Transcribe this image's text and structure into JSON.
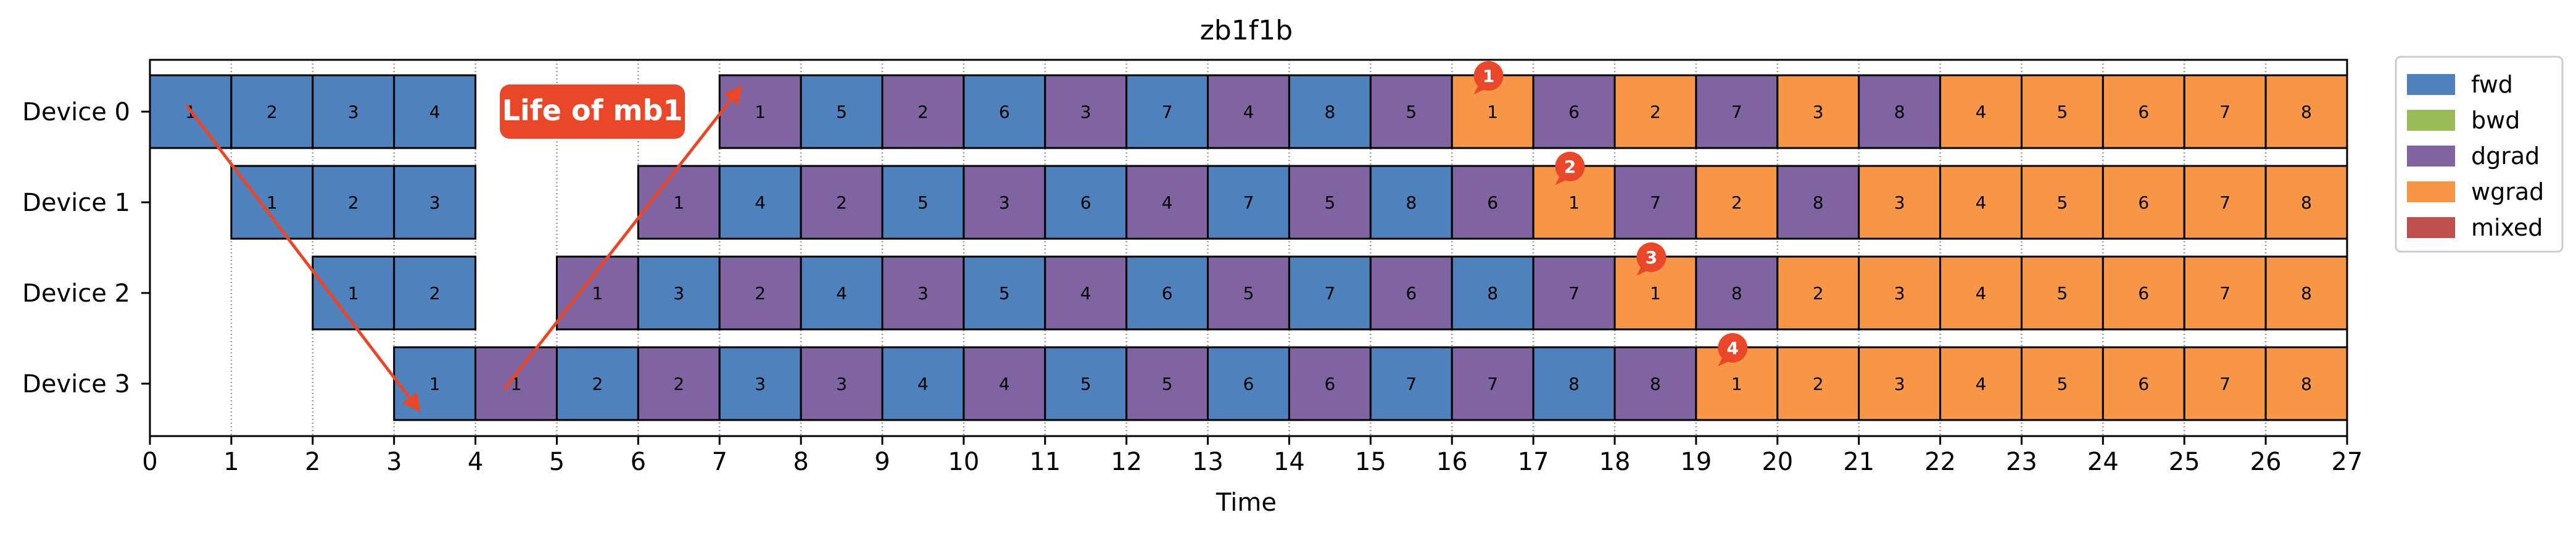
{
  "chart_data": {
    "type": "gantt",
    "title": "zb1f1b",
    "xlabel": "Time",
    "xlim": [
      0,
      27
    ],
    "xticks": [
      0,
      1,
      2,
      3,
      4,
      5,
      6,
      7,
      8,
      9,
      10,
      11,
      12,
      13,
      14,
      15,
      16,
      17,
      18,
      19,
      20,
      21,
      22,
      23,
      24,
      25,
      26,
      27
    ],
    "grid": "vertical-dotted",
    "legend_position": "right",
    "legend": [
      {
        "key": "fwd",
        "label": "fwd",
        "color": "#4f81bd"
      },
      {
        "key": "bwd",
        "label": "bwd",
        "color": "#9bbb59"
      },
      {
        "key": "dgrad",
        "label": "dgrad",
        "color": "#8064a2"
      },
      {
        "key": "wgrad",
        "label": "wgrad",
        "color": "#f79646"
      },
      {
        "key": "mixed",
        "label": "mixed",
        "color": "#c0504d"
      }
    ],
    "devices": [
      {
        "label": "Device 0",
        "blocks": [
          {
            "t": 0,
            "type": "fwd",
            "mb": "1"
          },
          {
            "t": 1,
            "type": "fwd",
            "mb": "2"
          },
          {
            "t": 2,
            "type": "fwd",
            "mb": "3"
          },
          {
            "t": 3,
            "type": "fwd",
            "mb": "4"
          },
          {
            "t": 7,
            "type": "dgrad",
            "mb": "1"
          },
          {
            "t": 8,
            "type": "fwd",
            "mb": "5"
          },
          {
            "t": 9,
            "type": "dgrad",
            "mb": "2"
          },
          {
            "t": 10,
            "type": "fwd",
            "mb": "6"
          },
          {
            "t": 11,
            "type": "dgrad",
            "mb": "3"
          },
          {
            "t": 12,
            "type": "fwd",
            "mb": "7"
          },
          {
            "t": 13,
            "type": "dgrad",
            "mb": "4"
          },
          {
            "t": 14,
            "type": "fwd",
            "mb": "8"
          },
          {
            "t": 15,
            "type": "dgrad",
            "mb": "5"
          },
          {
            "t": 16,
            "type": "wgrad",
            "mb": "1"
          },
          {
            "t": 17,
            "type": "dgrad",
            "mb": "6"
          },
          {
            "t": 18,
            "type": "wgrad",
            "mb": "2"
          },
          {
            "t": 19,
            "type": "dgrad",
            "mb": "7"
          },
          {
            "t": 20,
            "type": "wgrad",
            "mb": "3"
          },
          {
            "t": 21,
            "type": "dgrad",
            "mb": "8"
          },
          {
            "t": 22,
            "type": "wgrad",
            "mb": "4"
          },
          {
            "t": 23,
            "type": "wgrad",
            "mb": "5"
          },
          {
            "t": 24,
            "type": "wgrad",
            "mb": "6"
          },
          {
            "t": 25,
            "type": "wgrad",
            "mb": "7"
          },
          {
            "t": 26,
            "type": "wgrad",
            "mb": "8"
          }
        ]
      },
      {
        "label": "Device 1",
        "blocks": [
          {
            "t": 1,
            "type": "fwd",
            "mb": "1"
          },
          {
            "t": 2,
            "type": "fwd",
            "mb": "2"
          },
          {
            "t": 3,
            "type": "fwd",
            "mb": "3"
          },
          {
            "t": 6,
            "type": "dgrad",
            "mb": "1"
          },
          {
            "t": 7,
            "type": "fwd",
            "mb": "4"
          },
          {
            "t": 8,
            "type": "dgrad",
            "mb": "2"
          },
          {
            "t": 9,
            "type": "fwd",
            "mb": "5"
          },
          {
            "t": 10,
            "type": "dgrad",
            "mb": "3"
          },
          {
            "t": 11,
            "type": "fwd",
            "mb": "6"
          },
          {
            "t": 12,
            "type": "dgrad",
            "mb": "4"
          },
          {
            "t": 13,
            "type": "fwd",
            "mb": "7"
          },
          {
            "t": 14,
            "type": "dgrad",
            "mb": "5"
          },
          {
            "t": 15,
            "type": "fwd",
            "mb": "8"
          },
          {
            "t": 16,
            "type": "dgrad",
            "mb": "6"
          },
          {
            "t": 17,
            "type": "wgrad",
            "mb": "1"
          },
          {
            "t": 18,
            "type": "dgrad",
            "mb": "7"
          },
          {
            "t": 19,
            "type": "wgrad",
            "mb": "2"
          },
          {
            "t": 20,
            "type": "dgrad",
            "mb": "8"
          },
          {
            "t": 21,
            "type": "wgrad",
            "mb": "3"
          },
          {
            "t": 22,
            "type": "wgrad",
            "mb": "4"
          },
          {
            "t": 23,
            "type": "wgrad",
            "mb": "5"
          },
          {
            "t": 24,
            "type": "wgrad",
            "mb": "6"
          },
          {
            "t": 25,
            "type": "wgrad",
            "mb": "7"
          },
          {
            "t": 26,
            "type": "wgrad",
            "mb": "8"
          }
        ]
      },
      {
        "label": "Device 2",
        "blocks": [
          {
            "t": 2,
            "type": "fwd",
            "mb": "1"
          },
          {
            "t": 3,
            "type": "fwd",
            "mb": "2"
          },
          {
            "t": 5,
            "type": "dgrad",
            "mb": "1"
          },
          {
            "t": 6,
            "type": "fwd",
            "mb": "3"
          },
          {
            "t": 7,
            "type": "dgrad",
            "mb": "2"
          },
          {
            "t": 8,
            "type": "fwd",
            "mb": "4"
          },
          {
            "t": 9,
            "type": "dgrad",
            "mb": "3"
          },
          {
            "t": 10,
            "type": "fwd",
            "mb": "5"
          },
          {
            "t": 11,
            "type": "dgrad",
            "mb": "4"
          },
          {
            "t": 12,
            "type": "fwd",
            "mb": "6"
          },
          {
            "t": 13,
            "type": "dgrad",
            "mb": "5"
          },
          {
            "t": 14,
            "type": "fwd",
            "mb": "7"
          },
          {
            "t": 15,
            "type": "dgrad",
            "mb": "6"
          },
          {
            "t": 16,
            "type": "fwd",
            "mb": "8"
          },
          {
            "t": 17,
            "type": "dgrad",
            "mb": "7"
          },
          {
            "t": 18,
            "type": "wgrad",
            "mb": "1"
          },
          {
            "t": 19,
            "type": "dgrad",
            "mb": "8"
          },
          {
            "t": 20,
            "type": "wgrad",
            "mb": "2"
          },
          {
            "t": 21,
            "type": "wgrad",
            "mb": "3"
          },
          {
            "t": 22,
            "type": "wgrad",
            "mb": "4"
          },
          {
            "t": 23,
            "type": "wgrad",
            "mb": "5"
          },
          {
            "t": 24,
            "type": "wgrad",
            "mb": "6"
          },
          {
            "t": 25,
            "type": "wgrad",
            "mb": "7"
          },
          {
            "t": 26,
            "type": "wgrad",
            "mb": "8"
          }
        ]
      },
      {
        "label": "Device 3",
        "blocks": [
          {
            "t": 3,
            "type": "fwd",
            "mb": "1"
          },
          {
            "t": 4,
            "type": "dgrad",
            "mb": "1"
          },
          {
            "t": 5,
            "type": "fwd",
            "mb": "2"
          },
          {
            "t": 6,
            "type": "dgrad",
            "mb": "2"
          },
          {
            "t": 7,
            "type": "fwd",
            "mb": "3"
          },
          {
            "t": 8,
            "type": "dgrad",
            "mb": "3"
          },
          {
            "t": 9,
            "type": "fwd",
            "mb": "4"
          },
          {
            "t": 10,
            "type": "dgrad",
            "mb": "4"
          },
          {
            "t": 11,
            "type": "fwd",
            "mb": "5"
          },
          {
            "t": 12,
            "type": "dgrad",
            "mb": "5"
          },
          {
            "t": 13,
            "type": "fwd",
            "mb": "6"
          },
          {
            "t": 14,
            "type": "dgrad",
            "mb": "6"
          },
          {
            "t": 15,
            "type": "fwd",
            "mb": "7"
          },
          {
            "t": 16,
            "type": "dgrad",
            "mb": "7"
          },
          {
            "t": 17,
            "type": "fwd",
            "mb": "8"
          },
          {
            "t": 18,
            "type": "dgrad",
            "mb": "8"
          },
          {
            "t": 19,
            "type": "wgrad",
            "mb": "1"
          },
          {
            "t": 20,
            "type": "wgrad",
            "mb": "2"
          },
          {
            "t": 21,
            "type": "wgrad",
            "mb": "3"
          },
          {
            "t": 22,
            "type": "wgrad",
            "mb": "4"
          },
          {
            "t": 23,
            "type": "wgrad",
            "mb": "5"
          },
          {
            "t": 24,
            "type": "wgrad",
            "mb": "6"
          },
          {
            "t": 25,
            "type": "wgrad",
            "mb": "7"
          },
          {
            "t": 26,
            "type": "wgrad",
            "mb": "8"
          }
        ]
      }
    ],
    "annotations": {
      "callout_label": "Life of mb1",
      "callout_color": "#e8472a",
      "badges": [
        {
          "device": 0,
          "t": 16,
          "label": "1"
        },
        {
          "device": 1,
          "t": 17,
          "label": "2"
        },
        {
          "device": 2,
          "t": 18,
          "label": "3"
        },
        {
          "device": 3,
          "t": 19,
          "label": "4"
        }
      ]
    }
  }
}
